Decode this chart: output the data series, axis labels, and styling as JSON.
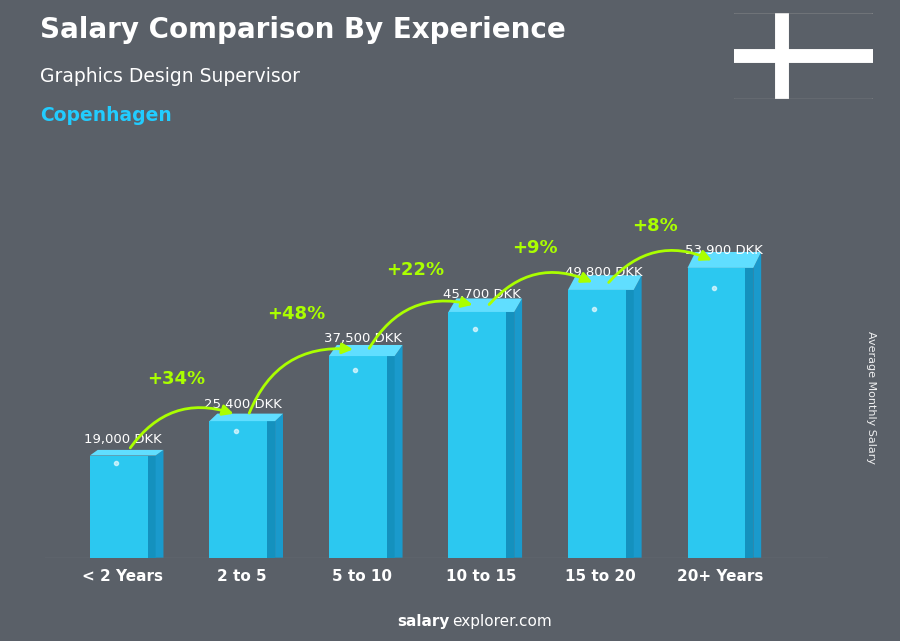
{
  "title": "Salary Comparison By Experience",
  "subtitle": "Graphics Design Supervisor",
  "city": "Copenhagen",
  "categories": [
    "< 2 Years",
    "2 to 5",
    "5 to 10",
    "10 to 15",
    "15 to 20",
    "20+ Years"
  ],
  "values": [
    19000,
    25400,
    37500,
    45700,
    49800,
    53900
  ],
  "labels": [
    "19,000 DKK",
    "25,400 DKK",
    "37,500 DKK",
    "45,700 DKK",
    "49,800 DKK",
    "53,900 DKK"
  ],
  "pct_changes": [
    "+34%",
    "+48%",
    "+22%",
    "+9%",
    "+8%"
  ],
  "bar_color_front": "#2cc8f0",
  "bar_color_dark": "#0a7aaa",
  "bar_color_top": "#60deff",
  "bar_color_top_dark": "#1a9acc",
  "background_color": "#5a6068",
  "text_color_white": "#ffffff",
  "text_color_cyan": "#22ccff",
  "text_color_green": "#aaff00",
  "footer_text_bold": "salary",
  "footer_text_normal": "explorer.com",
  "ylabel": "Average Monthly Salary",
  "ylim_max": 62000,
  "bar_width": 0.55,
  "flag_red": "#C60C30",
  "flag_white": "#ffffff"
}
